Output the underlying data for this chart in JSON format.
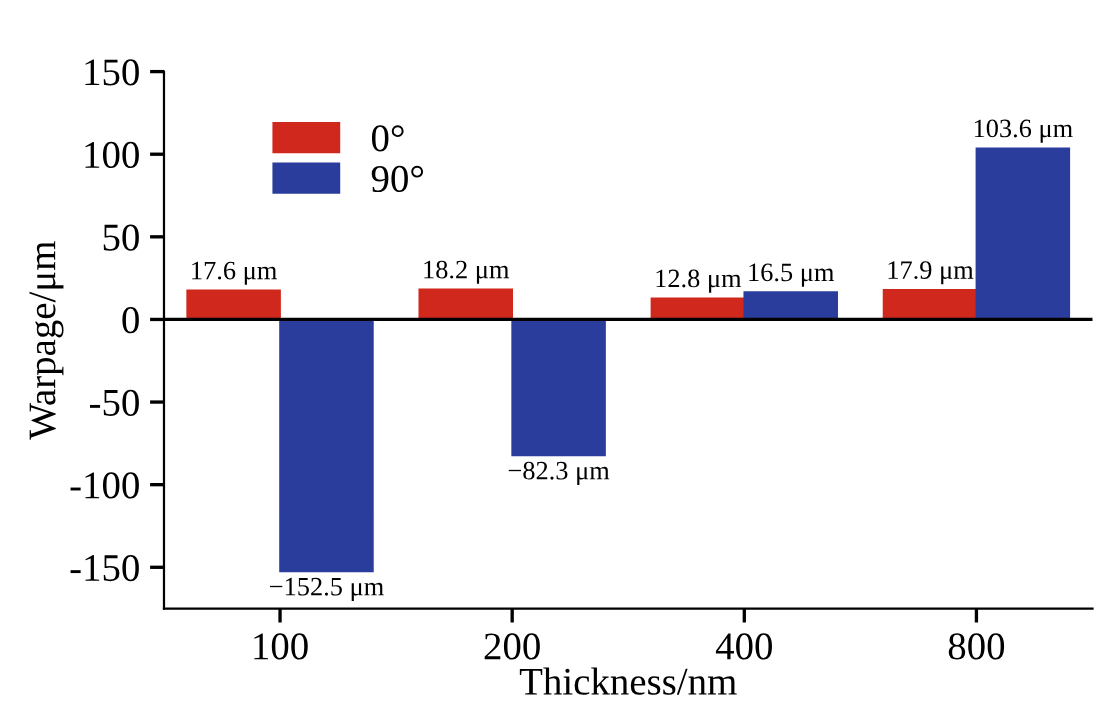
{
  "chart_data": {
    "type": "bar",
    "xlabel": "Thickness/nm",
    "ylabel": "Warpage/μm",
    "categories": [
      "100",
      "200",
      "400",
      "800"
    ],
    "series": [
      {
        "name": "0°",
        "color": "#d0281c",
        "values": [
          17.6,
          18.2,
          12.8,
          17.9
        ],
        "value_labels": [
          "17.6 μm",
          "18.2 μm",
          "12.8 μm",
          "17.9 μm"
        ]
      },
      {
        "name": "90°",
        "color": "#2a3c9c",
        "values": [
          -152.5,
          -82.3,
          16.5,
          103.6
        ],
        "value_labels": [
          "−152.5 μm",
          "−82.3 μm",
          "16.5 μm",
          "103.6 μm"
        ]
      }
    ],
    "ylim": [
      -175,
      150
    ],
    "yticks": [
      -150,
      -100,
      -50,
      0,
      50,
      100,
      150
    ],
    "ref_lines": [
      {
        "axis": "y",
        "value": 0,
        "color": "#000000"
      }
    ],
    "grid": false,
    "legend": "top left"
  }
}
